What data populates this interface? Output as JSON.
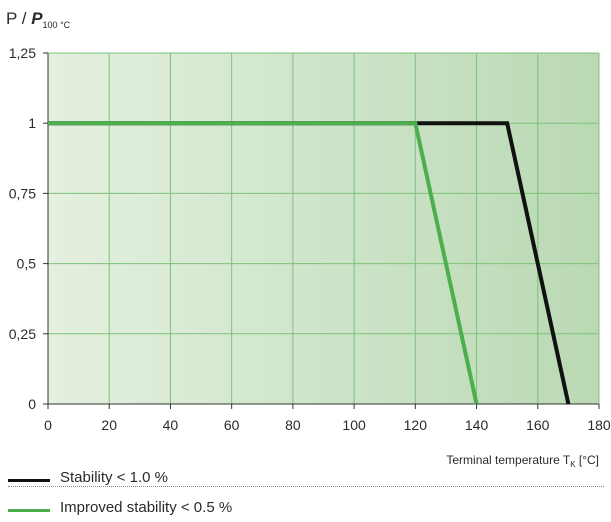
{
  "chart_data": {
    "type": "line",
    "ylabel_prefix": "P / ",
    "ylabel_symbol": "P",
    "ylabel_subscript": "100 °C",
    "xlabel_main": "Terminal temperature T",
    "xlabel_sub": "K",
    "xlabel_unit": " [°C]",
    "xlim": [
      0,
      180
    ],
    "ylim": [
      0,
      1.25
    ],
    "x_ticks": [
      0,
      20,
      40,
      60,
      80,
      100,
      120,
      140,
      160,
      180
    ],
    "y_ticks": [
      0,
      0.25,
      0.5,
      0.75,
      1,
      1.25
    ],
    "y_tick_labels": [
      "0",
      "0,25",
      "0,5",
      "0,75",
      "1",
      "1,25"
    ],
    "grid": true,
    "series": [
      {
        "name": "Stability < 1.0 %",
        "color": "#111111",
        "points": [
          [
            0,
            1
          ],
          [
            150,
            1
          ],
          [
            170,
            0
          ]
        ]
      },
      {
        "name": "Improved stability < 0.5 %",
        "color": "#4cae4c",
        "points": [
          [
            0,
            1
          ],
          [
            120,
            1
          ],
          [
            140,
            0
          ]
        ]
      }
    ]
  },
  "legend": {
    "items": [
      {
        "label": "Stability < 1.0 %",
        "color": "#111111"
      },
      {
        "label": "Improved stability < 0.5 %",
        "color": "#4cae4c"
      }
    ]
  }
}
